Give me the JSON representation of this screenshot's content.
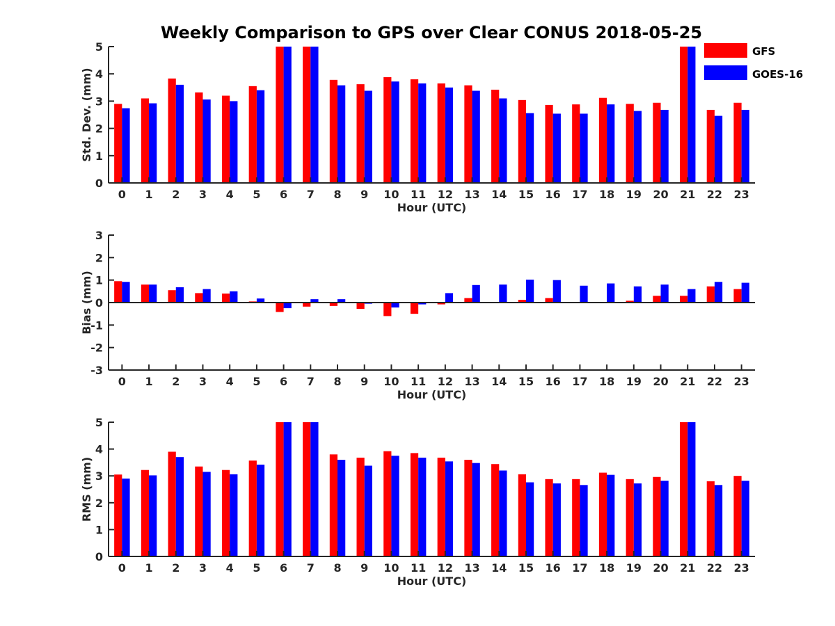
{
  "title": "Weekly Comparison to GPS over Clear CONUS 2018-05-25",
  "colors": {
    "GFS": "#ff0000",
    "GOES-16": "#0000ff",
    "axis": "#262626"
  },
  "legend": [
    {
      "name": "GFS",
      "color": "#ff0000"
    },
    {
      "name": "GOES-16",
      "color": "#0000ff"
    }
  ],
  "chart_data": [
    {
      "type": "bar",
      "title": "Weekly Comparison to GPS over Clear CONUS 2018-05-25",
      "xlabel": "Hour (UTC)",
      "ylabel": "Std. Dev. (mm)",
      "ylim": [
        0,
        5
      ],
      "yticks": [
        0,
        1,
        2,
        3,
        4,
        5
      ],
      "categories": [
        "0",
        "1",
        "2",
        "3",
        "4",
        "5",
        "6",
        "7",
        "8",
        "9",
        "10",
        "11",
        "12",
        "13",
        "14",
        "15",
        "16",
        "17",
        "18",
        "19",
        "20",
        "21",
        "22",
        "23"
      ],
      "series": [
        {
          "name": "GFS",
          "values": [
            2.9,
            3.1,
            3.83,
            3.32,
            3.2,
            3.55,
            5,
            5,
            3.78,
            3.62,
            3.88,
            3.8,
            3.65,
            3.58,
            3.42,
            3.04,
            2.86,
            2.88,
            3.12,
            2.9,
            2.94,
            5,
            2.68,
            2.94
          ]
        },
        {
          "name": "GOES-16",
          "values": [
            2.74,
            2.92,
            3.6,
            3.06,
            3.0,
            3.4,
            5,
            5,
            3.58,
            3.38,
            3.72,
            3.65,
            3.5,
            3.38,
            3.1,
            2.56,
            2.54,
            2.54,
            2.88,
            2.64,
            2.68,
            5,
            2.46,
            2.68
          ]
        }
      ]
    },
    {
      "type": "bar",
      "xlabel": "Hour (UTC)",
      "ylabel": "Bias (mm)",
      "ylim": [
        -3,
        3
      ],
      "yticks": [
        -3,
        -2,
        -1,
        0,
        1,
        2,
        3
      ],
      "categories": [
        "0",
        "1",
        "2",
        "3",
        "4",
        "5",
        "6",
        "7",
        "8",
        "9",
        "10",
        "11",
        "12",
        "13",
        "14",
        "15",
        "16",
        "17",
        "18",
        "19",
        "20",
        "21",
        "22",
        "23"
      ],
      "series": [
        {
          "name": "GFS",
          "values": [
            0.95,
            0.8,
            0.55,
            0.42,
            0.4,
            0.05,
            -0.42,
            -0.18,
            -0.15,
            -0.28,
            -0.6,
            -0.5,
            -0.08,
            0.2,
            0.0,
            0.12,
            0.2,
            0.0,
            0.0,
            0.08,
            0.3,
            0.3,
            0.72,
            0.6
          ]
        },
        {
          "name": "GOES-16",
          "values": [
            0.92,
            0.8,
            0.68,
            0.6,
            0.5,
            0.18,
            -0.25,
            0.15,
            0.15,
            -0.05,
            -0.22,
            -0.08,
            0.42,
            0.78,
            0.8,
            1.02,
            1.0,
            0.75,
            0.85,
            0.72,
            0.8,
            0.6,
            0.92,
            0.88
          ]
        }
      ]
    },
    {
      "type": "bar",
      "xlabel": "Hour (UTC)",
      "ylabel": "RMS (mm)",
      "ylim": [
        0,
        5
      ],
      "yticks": [
        0,
        1,
        2,
        3,
        4,
        5
      ],
      "categories": [
        "0",
        "1",
        "2",
        "3",
        "4",
        "5",
        "6",
        "7",
        "8",
        "9",
        "10",
        "11",
        "12",
        "13",
        "14",
        "15",
        "16",
        "17",
        "18",
        "19",
        "20",
        "21",
        "22",
        "23"
      ],
      "series": [
        {
          "name": "GFS",
          "values": [
            3.05,
            3.22,
            3.9,
            3.35,
            3.22,
            3.57,
            5,
            5,
            3.8,
            3.68,
            3.92,
            3.85,
            3.68,
            3.6,
            3.44,
            3.06,
            2.88,
            2.88,
            3.12,
            2.88,
            2.96,
            5,
            2.8,
            3.0
          ]
        },
        {
          "name": "GOES-16",
          "values": [
            2.9,
            3.02,
            3.7,
            3.15,
            3.06,
            3.42,
            5,
            5,
            3.6,
            3.38,
            3.75,
            3.68,
            3.54,
            3.48,
            3.2,
            2.76,
            2.72,
            2.66,
            3.04,
            2.72,
            2.82,
            5,
            2.66,
            2.82
          ]
        }
      ]
    }
  ]
}
